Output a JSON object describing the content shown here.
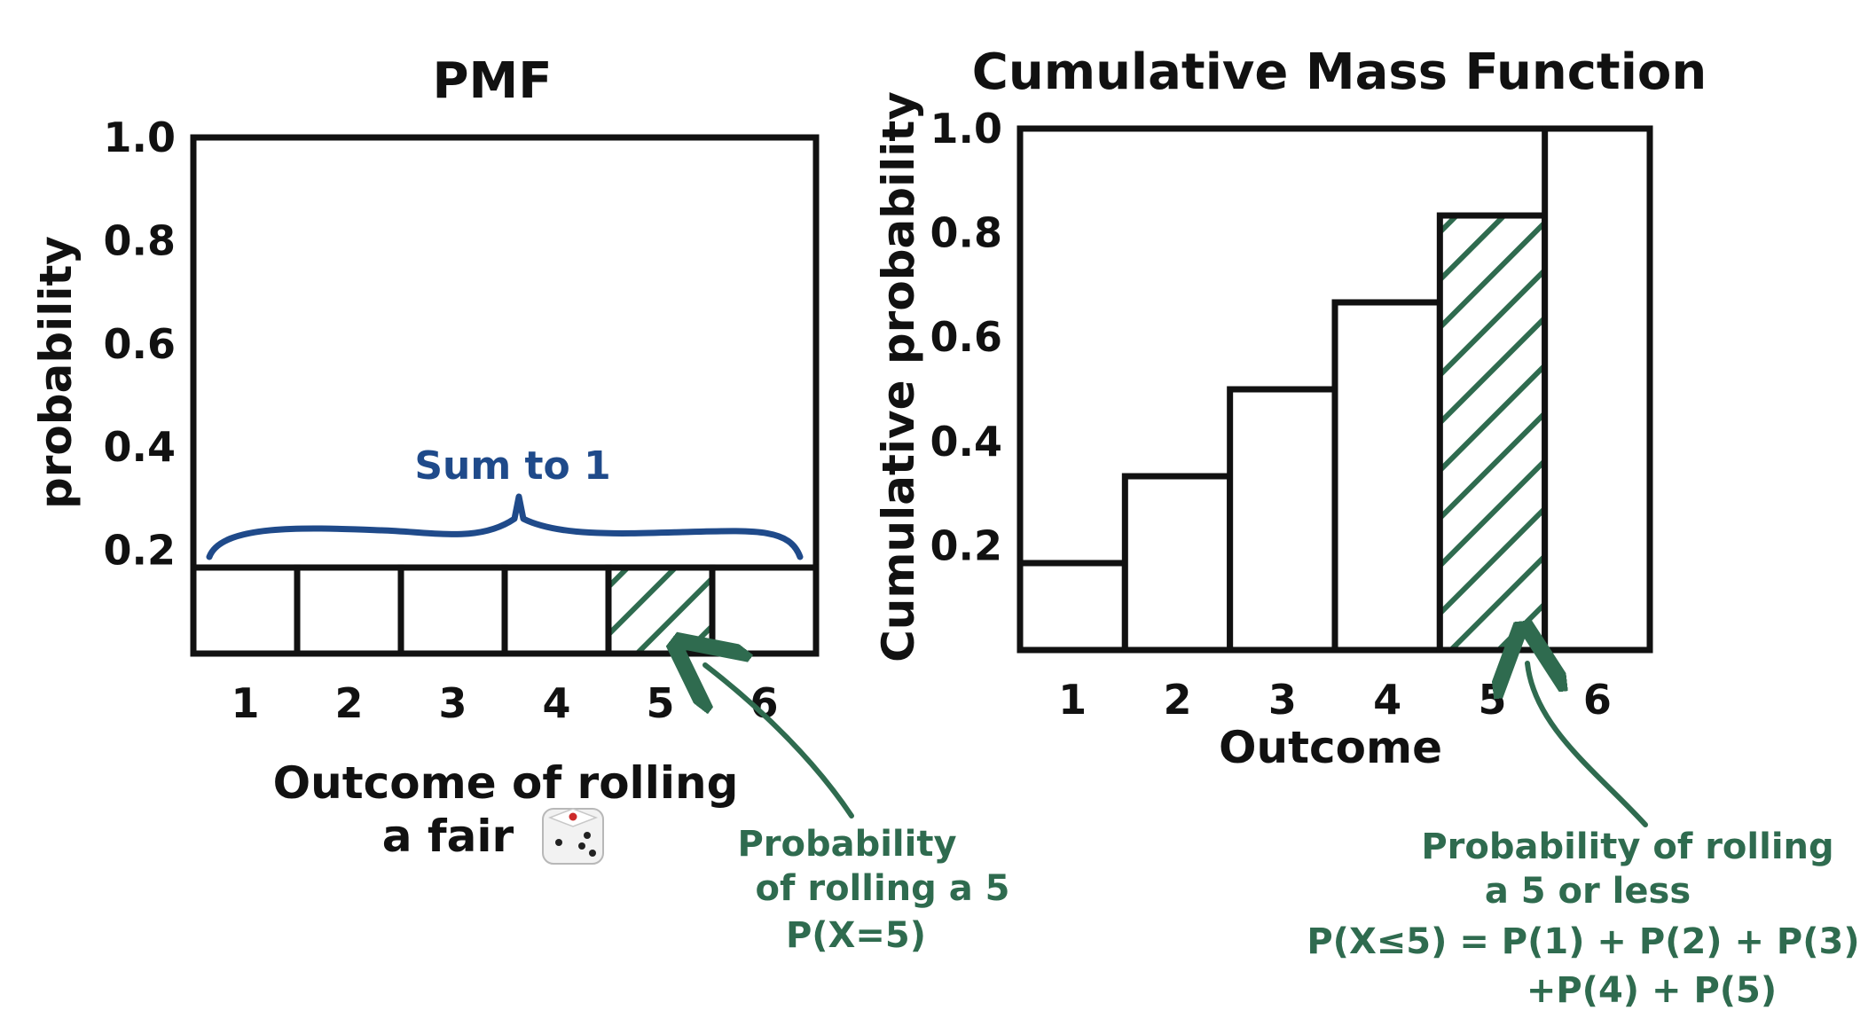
{
  "chart_data": [
    {
      "type": "bar",
      "title": "PMF",
      "xlabel_line1": "Outcome of rolling",
      "xlabel_line2": "a fair",
      "ylabel": "probability",
      "categories": [
        "1",
        "2",
        "3",
        "4",
        "5",
        "6"
      ],
      "values": [
        0.1667,
        0.1667,
        0.1667,
        0.1667,
        0.1667,
        0.1667
      ],
      "highlight_category": "5",
      "yticks": [
        "0.2",
        "0.4",
        "0.6",
        "0.8",
        "1.0"
      ],
      "ylim": [
        0,
        1.0
      ],
      "annotations": {
        "brace": "Sum to 1",
        "highlight_line1": "Probability",
        "highlight_line2": "of rolling a 5",
        "highlight_line3": "P(X=5)"
      }
    },
    {
      "type": "bar",
      "title": "Cumulative Mass Function",
      "xlabel": "Outcome",
      "ylabel": "Cumulative probability",
      "categories": [
        "1",
        "2",
        "3",
        "4",
        "5",
        "6"
      ],
      "values": [
        0.1667,
        0.3333,
        0.5,
        0.6667,
        0.8333,
        1.0
      ],
      "highlight_category": "5",
      "yticks": [
        "0.2",
        "0.4",
        "0.6",
        "0.8",
        "1.0"
      ],
      "ylim": [
        0,
        1.0
      ],
      "annotations": {
        "highlight_line1": "Probability of rolling",
        "highlight_line2": "a 5 or less",
        "highlight_line3": "P(X≤5) = P(1) + P(2) + P(3)",
        "highlight_line4": "+P(4) + P(5)"
      }
    }
  ],
  "colors": {
    "ink": "#111111",
    "hatch": "#2f6b4f",
    "brace": "#1f4a8a"
  },
  "icons": {
    "die": "die-icon"
  }
}
